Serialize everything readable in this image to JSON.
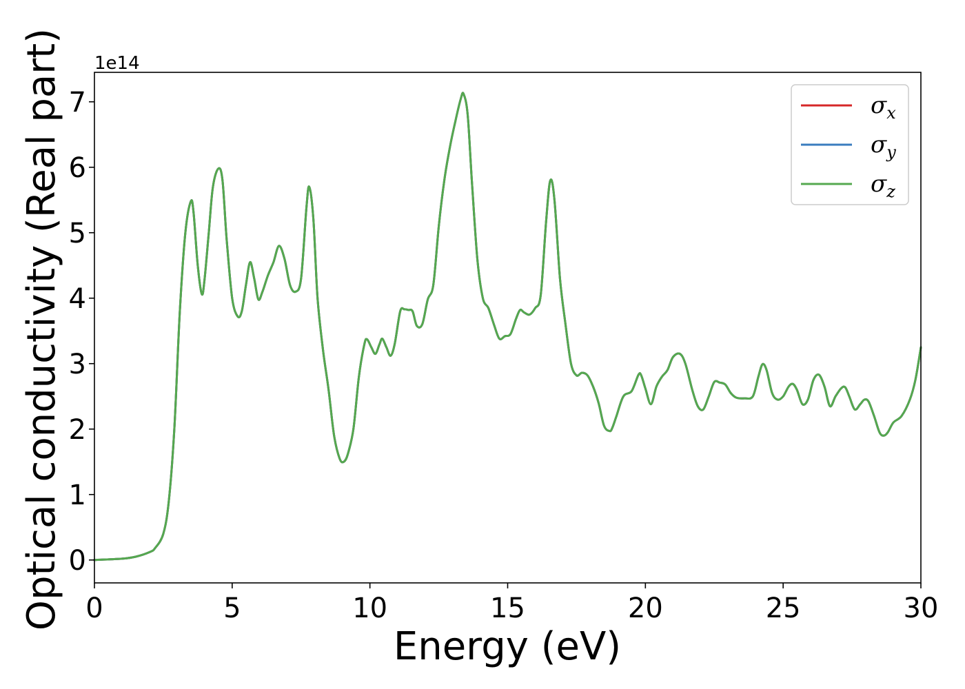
{
  "chart_data": {
    "type": "line",
    "xlabel": "Energy (eV)",
    "ylabel": "Optical conductivity (Real part)",
    "y_offset_label": "1e14",
    "xlim": [
      0,
      30
    ],
    "ylim": [
      -0.35,
      7.45
    ],
    "x_ticks": [
      0,
      5,
      10,
      15,
      20,
      25,
      30
    ],
    "y_ticks": [
      0,
      1,
      2,
      3,
      4,
      5,
      6,
      7
    ],
    "grid": false,
    "legend_position": "top-right",
    "series": [
      {
        "name": "σ",
        "subscript": "x",
        "color": "#d62728"
      },
      {
        "name": "σ",
        "subscript": "y",
        "color": "#3a7cbf"
      },
      {
        "name": "σ",
        "subscript": "z",
        "color": "#55a84f"
      }
    ],
    "x": [
      0,
      1,
      1.5,
      2,
      2.2,
      2.5,
      2.7,
      2.9,
      3.1,
      3.3,
      3.5,
      3.6,
      3.75,
      3.9,
      4.0,
      4.15,
      4.3,
      4.5,
      4.65,
      4.8,
      5.0,
      5.2,
      5.35,
      5.5,
      5.65,
      5.8,
      5.95,
      6.1,
      6.3,
      6.5,
      6.7,
      6.9,
      7.1,
      7.3,
      7.5,
      7.7,
      7.8,
      7.95,
      8.1,
      8.3,
      8.5,
      8.7,
      8.9,
      9.05,
      9.2,
      9.4,
      9.6,
      9.8,
      9.9,
      10.05,
      10.2,
      10.35,
      10.45,
      10.6,
      10.75,
      10.9,
      11.1,
      11.25,
      11.4,
      11.55,
      11.7,
      11.9,
      12.1,
      12.3,
      12.5,
      12.7,
      12.9,
      13.1,
      13.3,
      13.4,
      13.55,
      13.7,
      13.9,
      14.1,
      14.3,
      14.5,
      14.7,
      14.9,
      15.1,
      15.3,
      15.45,
      15.6,
      15.8,
      16.0,
      16.2,
      16.4,
      16.55,
      16.7,
      16.9,
      17.1,
      17.3,
      17.5,
      17.7,
      17.9,
      18.1,
      18.3,
      18.5,
      18.7,
      18.8,
      18.95,
      19.2,
      19.5,
      19.75,
      19.85,
      20.0,
      20.2,
      20.4,
      20.6,
      20.8,
      21.0,
      21.25,
      21.45,
      21.7,
      21.9,
      22.1,
      22.3,
      22.5,
      22.7,
      22.9,
      23.1,
      23.3,
      23.6,
      23.9,
      24.1,
      24.25,
      24.4,
      24.6,
      24.8,
      25.0,
      25.2,
      25.35,
      25.5,
      25.7,
      25.9,
      26.1,
      26.3,
      26.5,
      26.7,
      26.9,
      27.1,
      27.25,
      27.4,
      27.6,
      27.8,
      27.95,
      28.1,
      28.3,
      28.5,
      28.65,
      28.8,
      29.0,
      29.3,
      29.6,
      29.8,
      30.0
    ],
    "y": [
      0.0,
      0.02,
      0.05,
      0.12,
      0.18,
      0.4,
      0.9,
      2.0,
      3.8,
      5.0,
      5.48,
      5.3,
      4.5,
      4.06,
      4.3,
      5.0,
      5.7,
      5.98,
      5.8,
      4.9,
      4.0,
      3.72,
      3.8,
      4.2,
      4.55,
      4.3,
      3.98,
      4.1,
      4.35,
      4.55,
      4.8,
      4.6,
      4.2,
      4.1,
      4.3,
      5.4,
      5.7,
      5.2,
      4.0,
      3.2,
      2.6,
      1.9,
      1.55,
      1.5,
      1.62,
      2.0,
      2.8,
      3.3,
      3.37,
      3.25,
      3.15,
      3.3,
      3.38,
      3.25,
      3.12,
      3.3,
      3.8,
      3.83,
      3.82,
      3.8,
      3.58,
      3.6,
      3.98,
      4.2,
      5.1,
      5.8,
      6.3,
      6.7,
      7.05,
      7.12,
      6.8,
      5.8,
      4.6,
      4.0,
      3.85,
      3.6,
      3.38,
      3.42,
      3.45,
      3.68,
      3.82,
      3.78,
      3.75,
      3.85,
      4.05,
      5.2,
      5.8,
      5.5,
      4.3,
      3.6,
      3.0,
      2.82,
      2.86,
      2.82,
      2.65,
      2.4,
      2.05,
      1.97,
      2.02,
      2.2,
      2.5,
      2.58,
      2.83,
      2.82,
      2.62,
      2.38,
      2.65,
      2.8,
      2.9,
      3.1,
      3.15,
      3.0,
      2.6,
      2.35,
      2.3,
      2.5,
      2.72,
      2.71,
      2.68,
      2.55,
      2.48,
      2.47,
      2.5,
      2.8,
      2.99,
      2.9,
      2.55,
      2.45,
      2.5,
      2.65,
      2.69,
      2.6,
      2.38,
      2.45,
      2.75,
      2.83,
      2.65,
      2.35,
      2.5,
      2.62,
      2.64,
      2.5,
      2.3,
      2.38,
      2.45,
      2.42,
      2.2,
      1.95,
      1.9,
      1.95,
      2.1,
      2.2,
      2.45,
      2.75,
      3.25
    ]
  }
}
